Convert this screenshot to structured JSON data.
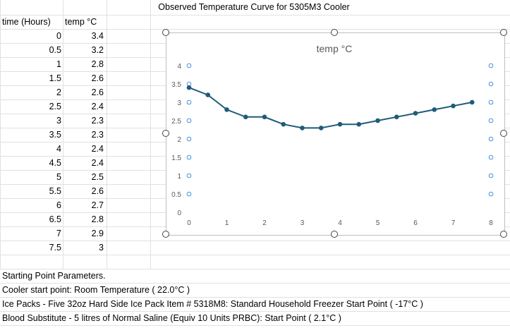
{
  "sheet": {
    "title": "Observed Temperature Curve for 5305M3 Cooler",
    "columns": {
      "time": "time (Hours)",
      "temp": "temp °C"
    },
    "rows": [
      {
        "time": "0",
        "temp": "3.4"
      },
      {
        "time": "0.5",
        "temp": "3.2"
      },
      {
        "time": "1",
        "temp": "2.8"
      },
      {
        "time": "1.5",
        "temp": "2.6"
      },
      {
        "time": "2",
        "temp": "2.6"
      },
      {
        "time": "2.5",
        "temp": "2.4"
      },
      {
        "time": "3",
        "temp": "2.3"
      },
      {
        "time": "3.5",
        "temp": "2.3"
      },
      {
        "time": "4",
        "temp": "2.4"
      },
      {
        "time": "4.5",
        "temp": "2.4"
      },
      {
        "time": "5",
        "temp": "2.5"
      },
      {
        "time": "5.5",
        "temp": "2.6"
      },
      {
        "time": "6",
        "temp": "2.7"
      },
      {
        "time": "6.5",
        "temp": "2.8"
      },
      {
        "time": "7",
        "temp": "2.9"
      },
      {
        "time": "7.5",
        "temp": "3"
      }
    ],
    "notes": [
      "Starting Point Parameters.",
      "Cooler start point: Room Temperature ( 22.0°C )",
      "Ice Packs - Five 32oz Hard Side Ice Pack Item # 5318M8: Standard Household Freezer Start Point ( -17°C )",
      "Blood Substitute - 5 litres of Normal Saline (Equiv 10 Units PRBC): Start Point ( 2.1°C )"
    ]
  },
  "chart_data": {
    "type": "line",
    "title": "temp °C",
    "x": [
      0,
      0.5,
      1,
      1.5,
      2,
      2.5,
      3,
      3.5,
      4,
      4.5,
      5,
      5.5,
      6,
      6.5,
      7,
      7.5
    ],
    "series": [
      {
        "values": [
          3.4,
          3.2,
          2.8,
          2.6,
          2.6,
          2.4,
          2.3,
          2.3,
          2.4,
          2.4,
          2.5,
          2.6,
          2.7,
          2.8,
          2.9,
          3
        ]
      }
    ],
    "xlim": [
      0,
      8
    ],
    "ylim": [
      0,
      4
    ],
    "xticks": [
      "0",
      "1",
      "2",
      "3",
      "4",
      "5",
      "6",
      "7",
      "8"
    ],
    "yticks": [
      "0",
      "0.5",
      "1",
      "1.5",
      "2",
      "2.5",
      "3",
      "3.5",
      "4"
    ],
    "line_color": "#1f5c78",
    "grid": false,
    "legend": "none"
  }
}
